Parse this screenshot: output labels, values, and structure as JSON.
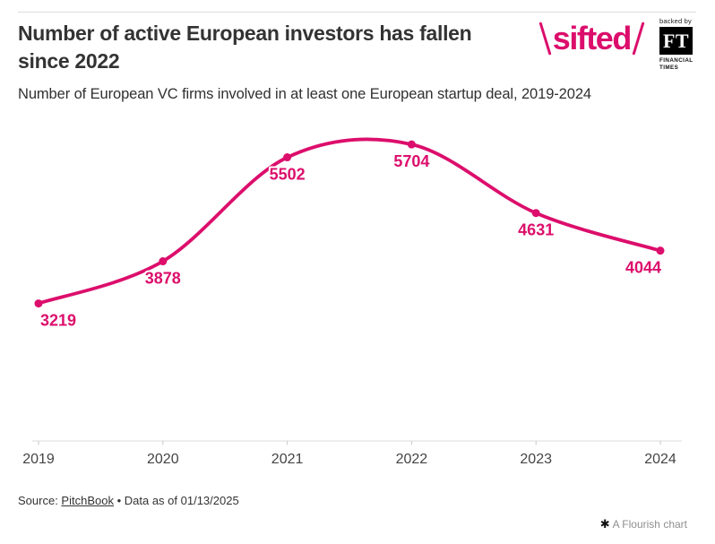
{
  "header": {
    "title": "Number of active European investors has fallen since 2022",
    "subtitle": "Number of European VC firms involved in at least one European startup deal, 2019-2024"
  },
  "branding": {
    "sifted_logo_text": "sifted",
    "sifted_pink": "#DC0E6C",
    "ft_backed_by": "backed by",
    "ft_monogram": "FT",
    "ft_name_line1": "FINANCIAL",
    "ft_name_line2": "TIMES"
  },
  "chart_data": {
    "type": "line",
    "title": "Number of active European investors has fallen since 2022",
    "subtitle": "Number of European VC firms involved in at least one European startup deal, 2019-2024",
    "x": [
      "2019",
      "2020",
      "2021",
      "2022",
      "2023",
      "2024"
    ],
    "values": [
      3219,
      3878,
      5502,
      5704,
      4631,
      4044
    ],
    "xlabel": "",
    "ylabel": "",
    "ylim": [
      1000,
      6000
    ],
    "grid": false,
    "legend": "none",
    "curve": "smooth",
    "line_color": "#DC0E6C",
    "point_color": "#DC0E6C",
    "label_color": "#DC0E6C",
    "axis_line_color": "#dcdcdc",
    "tick_color": "#c9c9c9",
    "axis_label_color": "#444444"
  },
  "footer": {
    "source_prefix": "Source: ",
    "source_link": "PitchBook",
    "separator": " • ",
    "source_suffix": "Data as of 01/13/2025",
    "flourish_icon": "✱",
    "flourish_credit": "A Flourish chart"
  }
}
